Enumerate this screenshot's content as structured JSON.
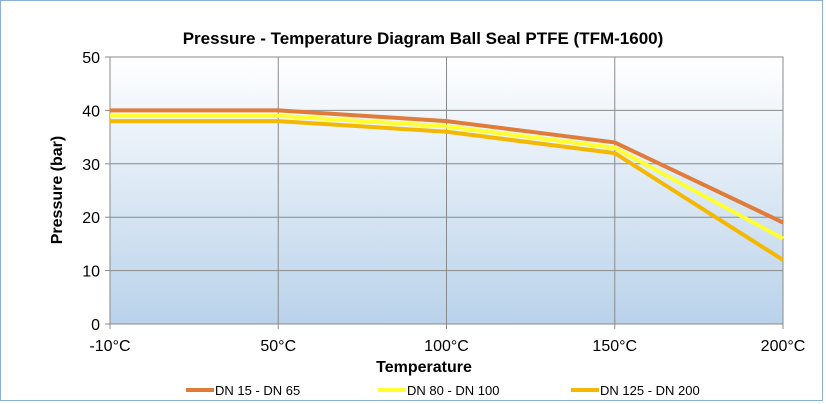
{
  "chart_data": {
    "type": "line",
    "title": "Pressure - Temperature Diagram  Ball Seal PTFE (TFM-1600)",
    "xlabel": "Temperature",
    "ylabel": "Pressure (bar)",
    "categories": [
      "-10°C",
      "50°C",
      "100°C",
      "150°C",
      "200°C"
    ],
    "y_ticks": [
      "0",
      "10",
      "20",
      "30",
      "40",
      "50"
    ],
    "ylim": [
      0,
      50
    ],
    "grid": true,
    "legend_position": "bottom",
    "series": [
      {
        "name": "DN 15 - DN 65",
        "color": "#e07b39",
        "values": [
          40,
          40,
          38,
          34,
          19
        ]
      },
      {
        "name": "DN 80 - DN 100",
        "color": "#ffff33",
        "values": [
          39,
          39,
          37,
          33,
          16
        ]
      },
      {
        "name": "DN 125 - DN 200",
        "color": "#f5b800",
        "values": [
          38,
          38,
          36,
          32,
          12
        ]
      }
    ]
  }
}
